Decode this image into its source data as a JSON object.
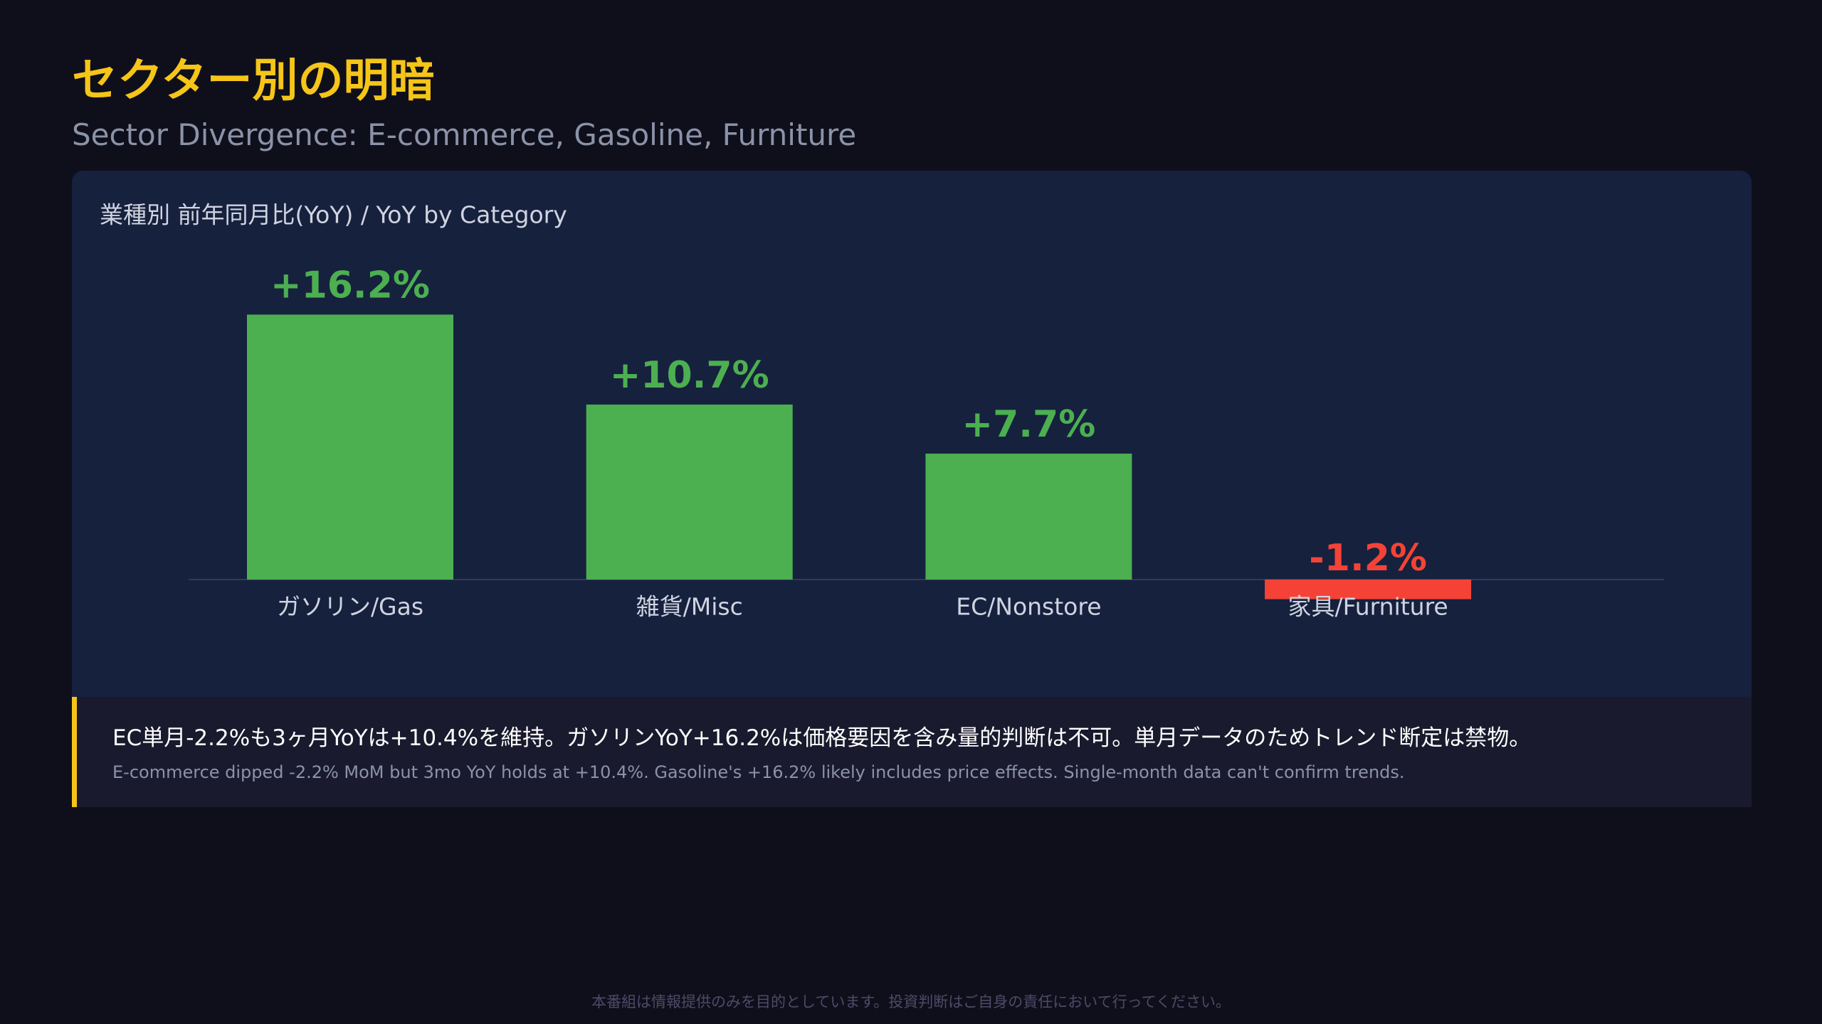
{
  "header": {
    "title": "セクター別の明暗",
    "subtitle": "Sector Divergence: E-commerce, Gasoline, Furniture"
  },
  "chart_data": {
    "type": "bar",
    "title": "業種別 前年同月比(YoY) / YoY by Category",
    "categories": [
      "ガソリン/Gas",
      "雑貨/Misc",
      "EC/Nonstore",
      "家具/Furniture"
    ],
    "values": [
      16.2,
      10.7,
      7.7,
      -1.2
    ],
    "value_labels": [
      "+16.2%",
      "+10.7%",
      "+7.7%",
      "-1.2%"
    ],
    "colors": [
      "#4caf50",
      "#4caf50",
      "#4caf50",
      "#f44336"
    ],
    "ylim": [
      -2,
      18
    ]
  },
  "note": {
    "text": "EC単月-2.2%も3ヶ月YoYは+10.4%を維持。ガソリンYoY+16.2%は価格要因を含み量的判断は不可。単月データのためトレンド断定は禁物。",
    "subtext": "E-commerce dipped -2.2% MoM but 3mo YoY holds at +10.4%. Gasoline's +16.2% likely includes price effects. Single-month data can't confirm trends."
  },
  "footer": "本番組は情報提供のみを目的としています。投資判断はご自身の責任において行ってください。"
}
